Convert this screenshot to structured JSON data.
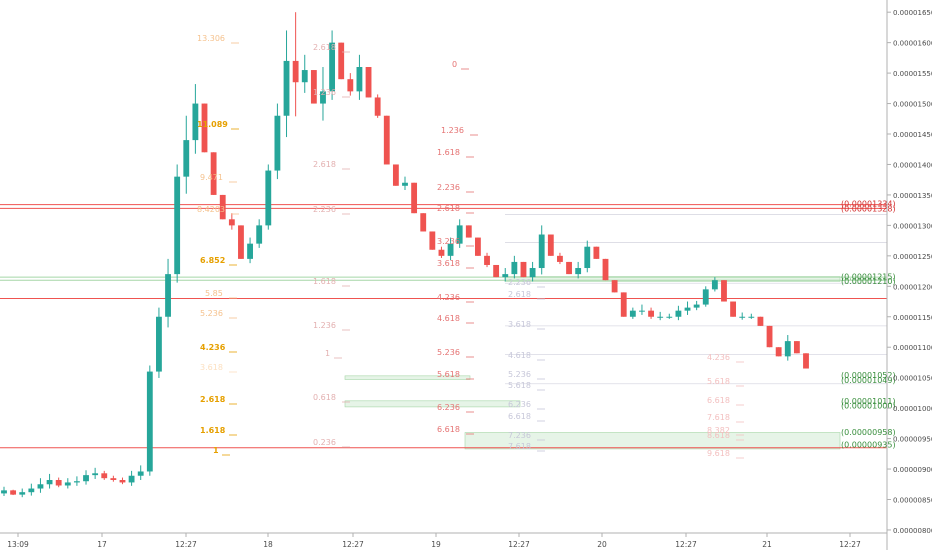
{
  "chart_data": {
    "type": "candlestick",
    "title": "",
    "xlabel": "",
    "ylabel": "",
    "ylim": [
      7.95e-06,
      1.67e-05
    ],
    "x_ticks": [
      "13:09",
      "17",
      "12:27",
      "18",
      "12:27",
      "19",
      "12:27",
      "20",
      "12:27",
      "21",
      "12:27"
    ],
    "y_ticks": [
      "0.00001650",
      "0.00001600",
      "0.00001550",
      "0.00001500",
      "0.00001450",
      "0.00001400",
      "0.00001350",
      "0.00001300",
      "0.00001250",
      "0.00001200",
      "0.00001150",
      "0.00001100",
      "0.00001050",
      "0.00001000",
      "0.00000950",
      "0.00000900",
      "0.00000850",
      "0.00000800"
    ],
    "candle_shape": [
      {
        "c": 8.65e-06,
        "h": 8.71e-06
      },
      {
        "c": 8.58e-06,
        "h": 8.66e-06
      },
      {
        "c": 8.62e-06,
        "h": 8.68e-06
      },
      {
        "c": 8.68e-06,
        "h": 8.76e-06
      },
      {
        "c": 8.75e-06,
        "h": 8.85e-06
      },
      {
        "c": 8.82e-06,
        "h": 8.92e-06
      },
      {
        "c": 8.73e-06,
        "h": 8.86e-06
      },
      {
        "c": 8.78e-06,
        "h": 8.85e-06
      },
      {
        "c": 8.8e-06,
        "h": 8.88e-06
      },
      {
        "c": 8.9e-06,
        "h": 8.98e-06
      },
      {
        "c": 8.93e-06,
        "h": 9.02e-06
      },
      {
        "c": 8.85e-06,
        "h": 8.97e-06
      },
      {
        "c": 8.82e-06,
        "h": 8.89e-06
      },
      {
        "c": 8.78e-06,
        "h": 8.86e-06
      },
      {
        "c": 8.89e-06,
        "h": 8.97e-06
      },
      {
        "c": 8.96e-06,
        "h": 9.06e-06
      },
      {
        "c": 1.06e-05,
        "h": 1.07e-05
      },
      {
        "c": 1.15e-05,
        "h": 1.165e-05
      },
      {
        "c": 1.22e-05,
        "h": 1.245e-05
      },
      {
        "c": 1.38e-05,
        "h": 1.4e-05
      },
      {
        "c": 1.44e-05,
        "h": 1.48e-05
      },
      {
        "c": 1.5e-05,
        "h": 1.532e-05
      },
      {
        "c": 1.42e-05,
        "h": 1.45e-05
      },
      {
        "c": 1.35e-05,
        "h": 1.375e-05
      },
      {
        "c": 1.31e-05,
        "h": 1.325e-05
      },
      {
        "c": 1.3e-05,
        "h": 1.32e-05
      },
      {
        "c": 1.245e-05,
        "h": 1.27e-05
      },
      {
        "c": 1.27e-05,
        "h": 1.28e-05
      },
      {
        "c": 1.3e-05,
        "h": 1.31e-05
      },
      {
        "c": 1.39e-05,
        "h": 1.4e-05
      },
      {
        "c": 1.48e-05,
        "h": 1.5e-05
      },
      {
        "c": 1.57e-05,
        "h": 1.62e-05
      },
      {
        "c": 1.535e-05,
        "h": 1.65e-05
      },
      {
        "c": 1.555e-05,
        "h": 1.58e-05
      },
      {
        "c": 1.5e-05,
        "h": 1.53e-05
      },
      {
        "c": 1.52e-05,
        "h": 1.56e-05
      },
      {
        "c": 1.6e-05,
        "h": 1.62e-05
      },
      {
        "c": 1.54e-05,
        "h": 1.57e-05
      },
      {
        "c": 1.52e-05,
        "h": 1.55e-05
      },
      {
        "c": 1.56e-05,
        "h": 1.58e-05
      },
      {
        "c": 1.51e-05,
        "h": 1.55e-05
      },
      {
        "c": 1.48e-05,
        "h": 1.515e-05
      },
      {
        "c": 1.4e-05,
        "h": 1.44e-05
      },
      {
        "c": 1.365e-05,
        "h": 1.39e-05
      },
      {
        "c": 1.37e-05,
        "h": 1.38e-05
      },
      {
        "c": 1.32e-05,
        "h": 1.345e-05
      },
      {
        "c": 1.29e-05,
        "h": 1.31e-05
      },
      {
        "c": 1.26e-05,
        "h": 1.285e-05
      },
      {
        "c": 1.25e-05,
        "h": 1.265e-05
      },
      {
        "c": 1.27e-05,
        "h": 1.28e-05
      },
      {
        "c": 1.3e-05,
        "h": 1.31e-05
      },
      {
        "c": 1.28e-05,
        "h": 1.3e-05
      },
      {
        "c": 1.25e-05,
        "h": 1.272e-05
      },
      {
        "c": 1.235e-05,
        "h": 1.255e-05
      },
      {
        "c": 1.215e-05,
        "h": 1.23e-05
      },
      {
        "c": 1.22e-05,
        "h": 1.23e-05
      },
      {
        "c": 1.24e-05,
        "h": 1.25e-05
      },
      {
        "c": 1.215e-05,
        "h": 1.235e-05
      },
      {
        "c": 1.23e-05,
        "h": 1.24e-05
      },
      {
        "c": 1.285e-05,
        "h": 1.3e-05
      },
      {
        "c": 1.25e-05,
        "h": 1.27e-05
      },
      {
        "c": 1.24e-05,
        "h": 1.255e-05
      },
      {
        "c": 1.22e-05,
        "h": 1.238e-05
      },
      {
        "c": 1.23e-05,
        "h": 1.24e-05
      },
      {
        "c": 1.265e-05,
        "h": 1.275e-05
      },
      {
        "c": 1.245e-05,
        "h": 1.26e-05
      },
      {
        "c": 1.21e-05,
        "h": 1.23e-05
      },
      {
        "c": 1.19e-05,
        "h": 1.205e-05
      },
      {
        "c": 1.15e-05,
        "h": 1.17e-05
      },
      {
        "c": 1.16e-05,
        "h": 1.165e-05
      },
      {
        "c": 1.16e-05,
        "h": 1.17e-05
      },
      {
        "c": 1.15e-05,
        "h": 1.165e-05
      },
      {
        "c": 1.15e-05,
        "h": 1.158e-05
      },
      {
        "c": 1.15e-05,
        "h": 1.155e-05
      },
      {
        "c": 1.16e-05,
        "h": 1.168e-05
      },
      {
        "c": 1.165e-05,
        "h": 1.175e-05
      },
      {
        "c": 1.17e-05,
        "h": 1.176e-05
      },
      {
        "c": 1.195e-05,
        "h": 1.2e-05
      },
      {
        "c": 1.21e-05,
        "h": 1.215e-05
      },
      {
        "c": 1.175e-05,
        "h": 1.198e-05
      },
      {
        "c": 1.15e-05,
        "h": 1.16e-05
      },
      {
        "c": 1.15e-05,
        "h": 1.157e-05
      },
      {
        "c": 1.15e-05,
        "h": 1.155e-05
      },
      {
        "c": 1.135e-05,
        "h": 1.15e-05
      },
      {
        "c": 1.1e-05,
        "h": 1.12e-05
      },
      {
        "c": 1.085e-05,
        "h": 1.092e-05
      },
      {
        "c": 1.11e-05,
        "h": 1.12e-05
      },
      {
        "c": 1.09e-05,
        "h": 1.11e-05
      },
      {
        "c": 1.065e-05,
        "h": 1.08e-05
      }
    ],
    "horizontal_lines": [
      {
        "price": 1.334e-05,
        "color": "#ef5350"
      },
      {
        "price": 1.328e-05,
        "color": "#ef5350"
      },
      {
        "price": 1.215e-05,
        "color": "#a5d6a7"
      },
      {
        "price": 1.21e-05,
        "color": "#a5d6a7"
      },
      {
        "price": 1.18e-05,
        "color": "#ef5350"
      },
      {
        "price": 9.35e-06,
        "color": "#ef5350"
      }
    ],
    "price_tags": [
      {
        "text": "(0.00001334)",
        "price": 1.336e-05,
        "color": "#d32f2f"
      },
      {
        "text": "(0.00001328)",
        "price": 1.328e-05,
        "color": "#d32f2f"
      },
      {
        "text": "(0.00001215)",
        "price": 1.216e-05,
        "color": "#388e3c"
      },
      {
        "text": "(0.00001210)",
        "price": 1.209e-05,
        "color": "#388e3c"
      },
      {
        "text": "(0.00001052)",
        "price": 1.054e-05,
        "color": "#388e3c"
      },
      {
        "text": "(0.00001049)",
        "price": 1.046e-05,
        "color": "#388e3c"
      },
      {
        "text": "(0.00001011)",
        "price": 1.012e-05,
        "color": "#388e3c"
      },
      {
        "text": "(0.00001000)",
        "price": 1.004e-05,
        "color": "#388e3c"
      },
      {
        "text": "(0.00000958)",
        "price": 9.61e-06,
        "color": "#388e3c"
      },
      {
        "text": "(0.00000935)",
        "price": 9.4e-06,
        "color": "#388e3c"
      }
    ],
    "fib_labels": [
      {
        "text": "13.306",
        "color": "#f5c28e",
        "bold": false
      },
      {
        "text": "11.089",
        "color": "#e6a000",
        "bold": true
      },
      {
        "text": "9.471",
        "color": "#f5c28e",
        "bold": false
      },
      {
        "text": "8.4203",
        "color": "#f5c28e",
        "bold": false
      },
      {
        "text": "6.852",
        "color": "#e6a000",
        "bold": true
      },
      {
        "text": "5.85",
        "color": "#f5c28e",
        "bold": false
      },
      {
        "text": "5.236",
        "color": "#f5c28e",
        "bold": false
      },
      {
        "text": "4.236",
        "color": "#e6a000",
        "bold": true
      },
      {
        "text": "3.618",
        "color": "#fce0c0",
        "bold": false
      },
      {
        "text": "2.618",
        "color": "#e6a000",
        "bold": true
      },
      {
        "text": "1.618",
        "color": "#e6a000",
        "bold": true
      },
      {
        "text": "1",
        "color": "#e6a000",
        "bold": true
      },
      {
        "text": "2.618",
        "color": "#e3b0b0",
        "bold": false
      },
      {
        "text": "1.236",
        "color": "#e3b0b0",
        "bold": false
      },
      {
        "text": "2.618",
        "color": "#e3b0b0",
        "bold": false
      },
      {
        "text": "2.236",
        "color": "#e3b0b0",
        "bold": false
      },
      {
        "text": "1.618",
        "color": "#e3b0b0",
        "bold": false
      },
      {
        "text": "1.236",
        "color": "#e3b0b0",
        "bold": false
      },
      {
        "text": "1",
        "color": "#e3b0b0",
        "bold": false
      },
      {
        "text": "0.618",
        "color": "#e3b0b0",
        "bold": false
      },
      {
        "text": "0.236",
        "color": "#e3b0b0",
        "bold": false
      },
      {
        "text": "0",
        "color": "#e57373",
        "bold": false
      },
      {
        "text": "1.236",
        "color": "#e57373",
        "bold": false
      },
      {
        "text": "1.618",
        "color": "#e57373",
        "bold": false
      },
      {
        "text": "2.236",
        "color": "#e57373",
        "bold": false
      },
      {
        "text": "2.618",
        "color": "#e57373",
        "bold": false
      },
      {
        "text": "3.236",
        "color": "#e57373",
        "bold": false
      },
      {
        "text": "3.618",
        "color": "#e57373",
        "bold": false
      },
      {
        "text": "4.236",
        "color": "#e57373",
        "bold": false
      },
      {
        "text": "4.618",
        "color": "#e57373",
        "bold": false
      },
      {
        "text": "5.236",
        "color": "#e57373",
        "bold": false
      },
      {
        "text": "5.618",
        "color": "#e57373",
        "bold": false
      },
      {
        "text": "6.236",
        "color": "#e57373",
        "bold": false
      },
      {
        "text": "6.618",
        "color": "#e57373",
        "bold": false
      },
      {
        "text": "2.236",
        "color": "#c7c7d9",
        "bold": false
      },
      {
        "text": "2.618",
        "color": "#c7c7d9",
        "bold": false
      },
      {
        "text": "3.618",
        "color": "#c7c7d9",
        "bold": false
      },
      {
        "text": "4.618",
        "color": "#c7c7d9",
        "bold": false
      },
      {
        "text": "5.236",
        "color": "#c7c7d9",
        "bold": false
      },
      {
        "text": "5.618",
        "color": "#c7c7d9",
        "bold": false
      },
      {
        "text": "6.236",
        "color": "#c7c7d9",
        "bold": false
      },
      {
        "text": "6.618",
        "color": "#c7c7d9",
        "bold": false
      },
      {
        "text": "7.236",
        "color": "#c7c7d9",
        "bold": false
      },
      {
        "text": "7.618",
        "color": "#c7c7d9",
        "bold": false
      },
      {
        "text": "4.236",
        "color": "#f3c0c0",
        "bold": false
      },
      {
        "text": "5.618",
        "color": "#f3c0c0",
        "bold": false
      },
      {
        "text": "6.618",
        "color": "#f3c0c0",
        "bold": false
      },
      {
        "text": "7.618",
        "color": "#f3c0c0",
        "bold": false
      },
      {
        "text": "8.382",
        "color": "#f3c0c0",
        "bold": false
      },
      {
        "text": "8.618",
        "color": "#f3c0c0",
        "bold": false
      },
      {
        "text": "9.618",
        "color": "#f3c0c0",
        "bold": false
      }
    ],
    "colors": {
      "up": "#26a69a",
      "down": "#ef5350",
      "axis_text": "#4a4a4a",
      "grid_line": "#e6e6e6"
    }
  }
}
